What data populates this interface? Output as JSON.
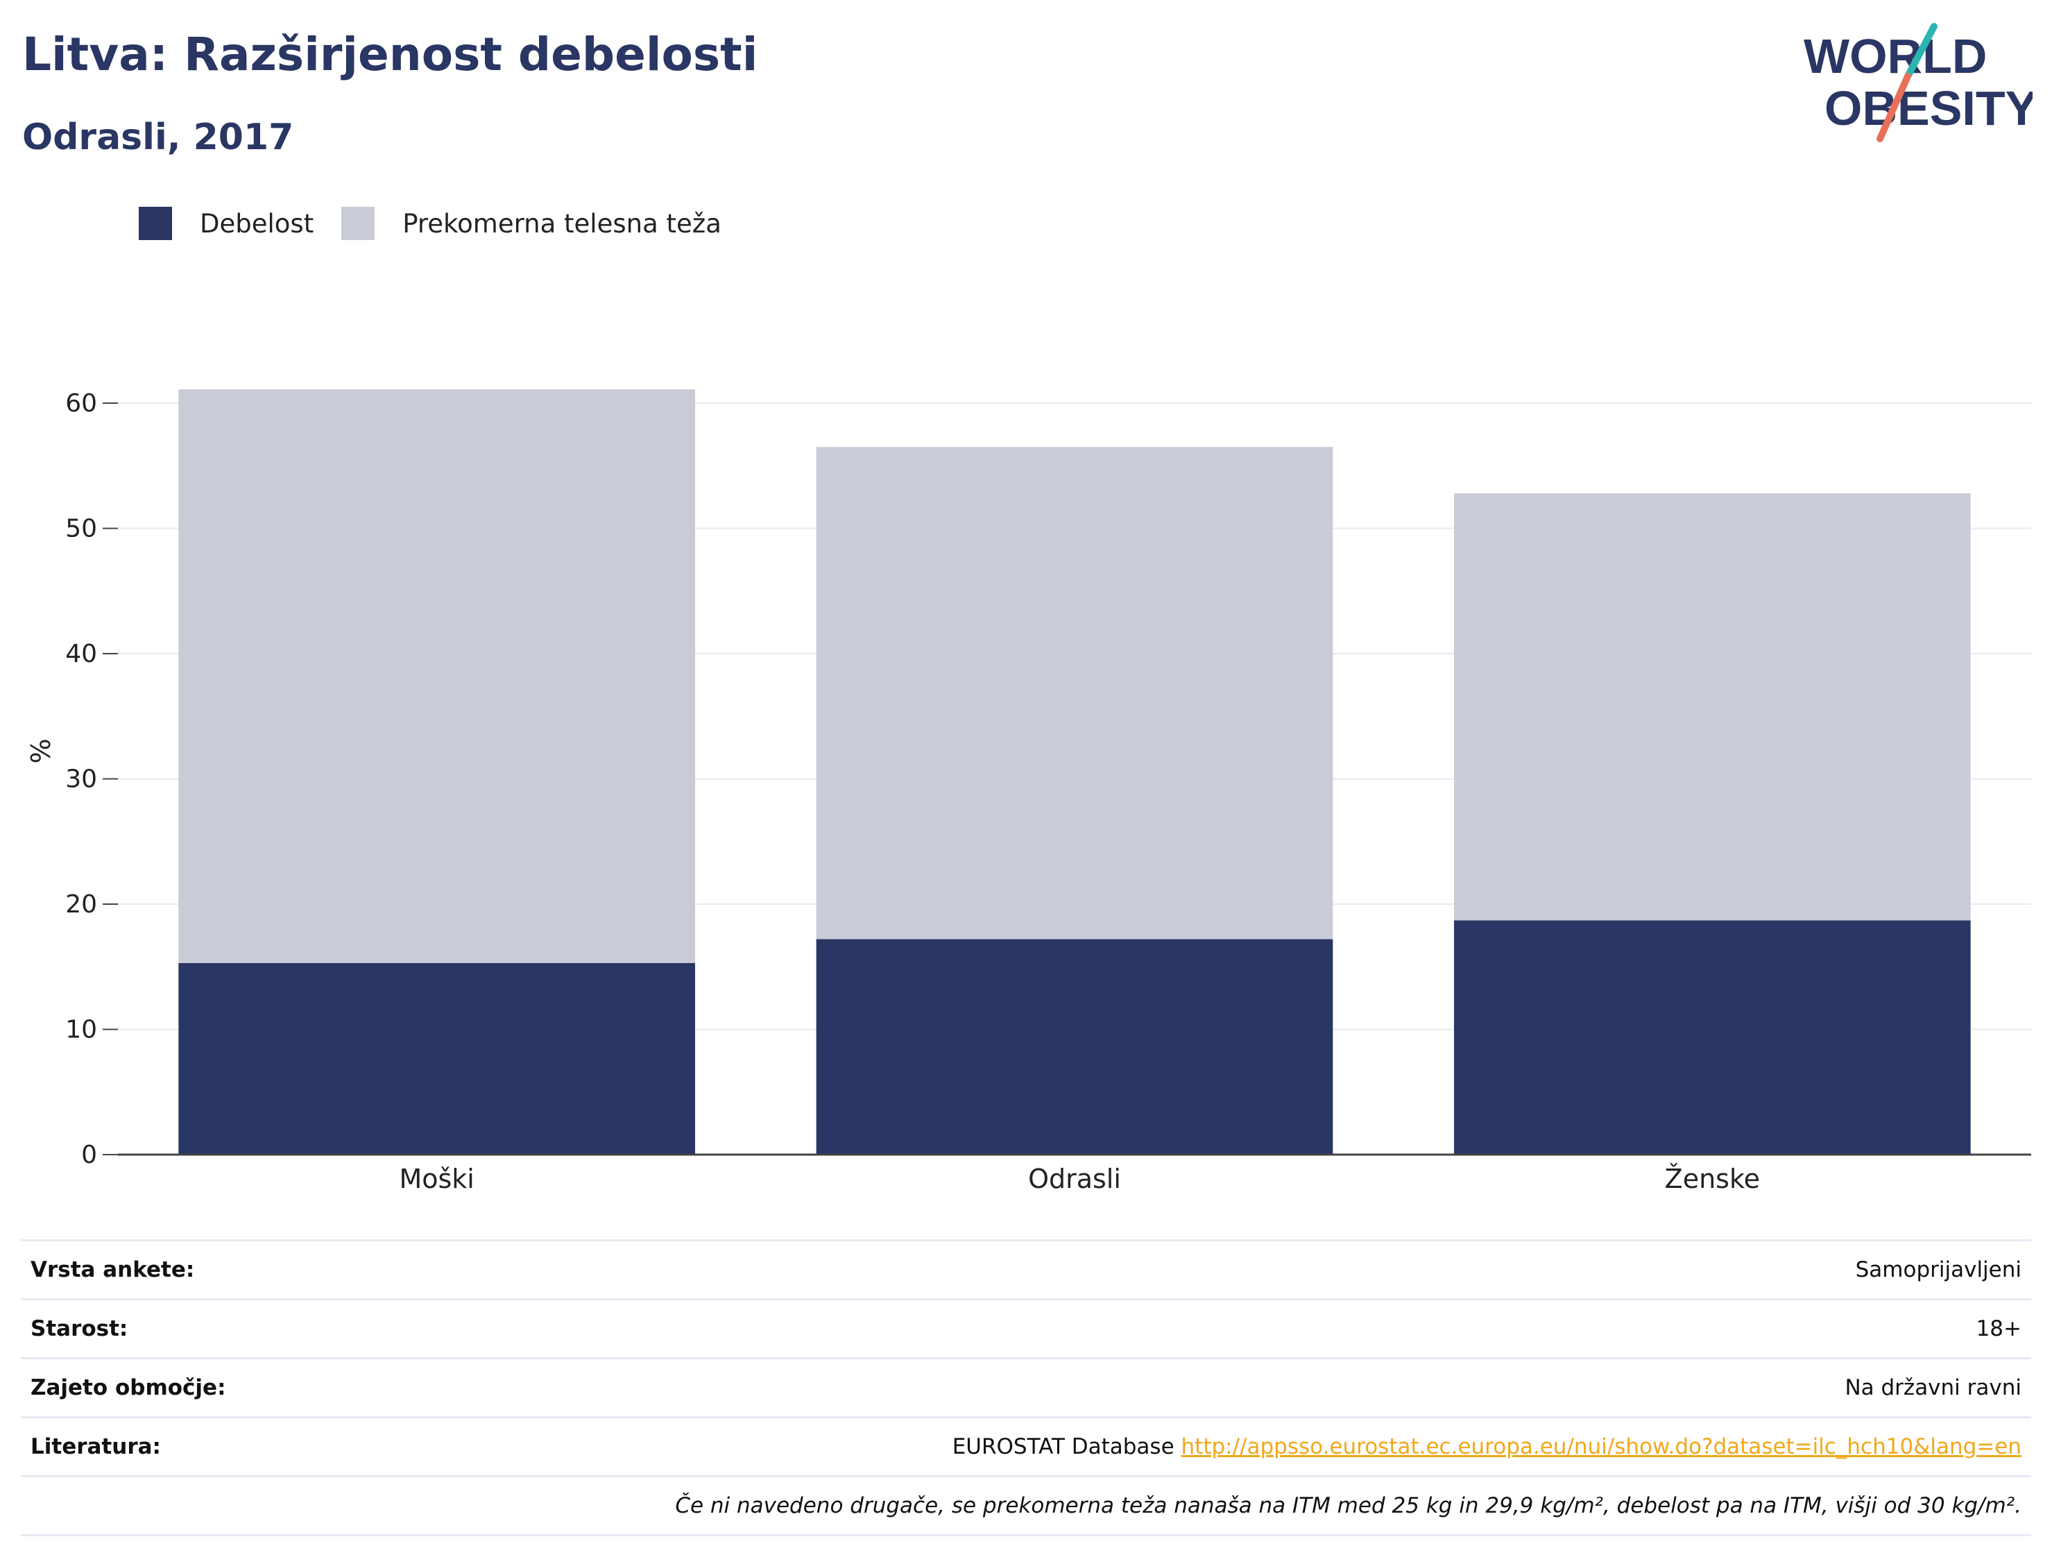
{
  "title": "Litva: Razširjenost debelosti",
  "subtitle": "Odrasli, 2017",
  "logo": {
    "line1": "WORLD",
    "line2": "OBESITY",
    "colors": {
      "text": "#2a3663",
      "slash_top": "#2bb5b0",
      "slash_bottom": "#e8705a"
    }
  },
  "legend": [
    {
      "label": "Debelost",
      "color": "#2a3663"
    },
    {
      "label": "Prekomerna telesna teža",
      "color": "#c9cbd7"
    }
  ],
  "chart_data": {
    "type": "bar",
    "stacked": true,
    "categories": [
      "Moški",
      "Odrasli",
      "Ženske"
    ],
    "series": [
      {
        "name": "Debelost",
        "values": [
          15.3,
          17.2,
          18.7
        ],
        "color": "#2a3663"
      },
      {
        "name": "Prekomerna telesna teža",
        "values": [
          45.8,
          39.3,
          34.1
        ],
        "color": "#c9cbd7"
      }
    ],
    "ylabel": "%",
    "xlabel": "",
    "ylim": [
      0,
      63
    ],
    "yticks": [
      0,
      10,
      20,
      30,
      40,
      50,
      60
    ],
    "grid": true,
    "legend_position": "top-left"
  },
  "info": {
    "rows": [
      {
        "label": "Vrsta ankete:",
        "value": "Samoprijavljeni"
      },
      {
        "label": "Starost:",
        "value": "18+"
      },
      {
        "label": "Zajeto območje:",
        "value": "Na državni ravni"
      }
    ],
    "source_label": "Literatura:",
    "source_text": "EUROSTAT Database ",
    "source_link": "http://appsso.eurostat.ec.europa.eu/nui/show.do?dataset=ilc_hch10&lang=en",
    "footnote": "Če ni navedeno drugače, se prekomerna teža nanaša na ITM med 25 kg in 29,9 kg/m², debelost pa na ITM, višji od 30 kg/m²."
  }
}
